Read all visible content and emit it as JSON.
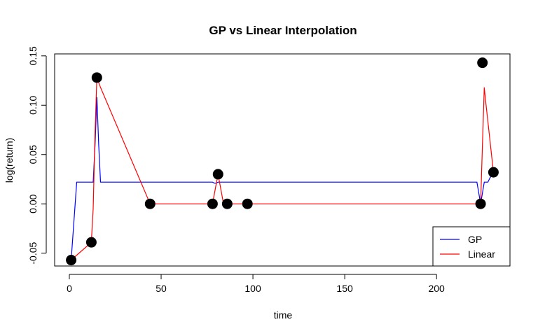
{
  "chart_data": {
    "type": "line",
    "title": "GP vs Linear Interpolation",
    "xlabel": "time",
    "ylabel": "log(return)",
    "xlim": [
      -8,
      240
    ],
    "ylim": [
      -0.063,
      0.152
    ],
    "x_ticks": [
      0,
      50,
      100,
      150,
      200
    ],
    "x_tick_labels": [
      "0",
      "50",
      "100",
      "150",
      "200"
    ],
    "y_ticks": [
      -0.05,
      0.0,
      0.05,
      0.1,
      0.15
    ],
    "y_tick_labels": [
      "-0.05",
      "0.00",
      "0.05",
      "0.10",
      "0.15"
    ],
    "grid": false,
    "legend_position": "bottom-right",
    "observed_points": {
      "color": "#000000",
      "x": [
        1,
        12,
        15,
        44,
        78,
        81,
        86,
        97,
        224,
        225,
        231
      ],
      "y": [
        -0.057,
        -0.039,
        0.128,
        0.0,
        0.0,
        0.03,
        0.0,
        0.0,
        0.0,
        0.143,
        0.032
      ]
    },
    "series": [
      {
        "name": "GP",
        "color": "#0000ff",
        "x": [
          1,
          4,
          12,
          13,
          14,
          15,
          16,
          17,
          44,
          78,
          79,
          80,
          81,
          82,
          86,
          97,
          222,
          224,
          225,
          226,
          228,
          229,
          231
        ],
        "y": [
          -0.057,
          0.022,
          0.022,
          0.022,
          0.06,
          0.108,
          0.06,
          0.022,
          0.022,
          0.022,
          0.021,
          0.021,
          0.022,
          0.022,
          0.022,
          0.022,
          0.022,
          0.0,
          0.011,
          0.022,
          0.022,
          0.026,
          0.032
        ]
      },
      {
        "name": "Linear",
        "color": "#ff0000",
        "x": [
          1,
          12,
          13,
          14,
          15,
          17,
          44,
          78,
          79,
          80,
          81,
          82,
          84,
          86,
          97,
          224,
          225,
          226,
          227,
          231
        ],
        "y": [
          -0.057,
          -0.039,
          -0.005,
          0.072,
          0.128,
          0.118,
          0.0,
          0.0,
          0.01,
          0.02,
          0.03,
          0.02,
          0.0,
          0.0,
          0.0,
          0.0,
          0.06,
          0.118,
          0.1,
          0.032
        ]
      }
    ]
  }
}
